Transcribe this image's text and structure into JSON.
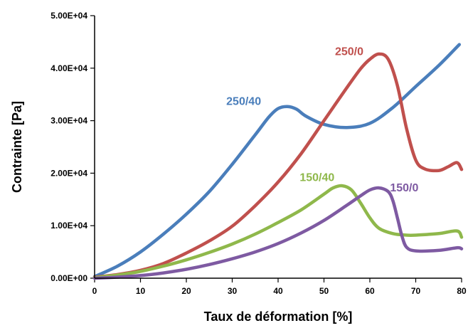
{
  "chart_data": {
    "type": "line",
    "title": "",
    "xlabel": "Taux de déformation [%]",
    "ylabel": "Contrainte [Pa]",
    "xlim": [
      0,
      80
    ],
    "ylim": [
      0,
      50000
    ],
    "x_ticks": [
      0,
      10,
      20,
      30,
      40,
      50,
      60,
      70,
      80
    ],
    "x_tick_labels": [
      "0",
      "10",
      "20",
      "30",
      "40",
      "50",
      "60",
      "70",
      "80"
    ],
    "y_ticks": [
      0,
      10000,
      20000,
      30000,
      40000,
      50000
    ],
    "y_tick_labels": [
      "0.00E+00",
      "1.00E+04",
      "2.00E+04",
      "3.00E+04",
      "4.00E+04",
      "5.00E+04"
    ],
    "grid": false,
    "legend": "inline labels",
    "series": [
      {
        "name": "250/40",
        "color": "#4a7ebb",
        "x": [
          0,
          5,
          10,
          15,
          20,
          25,
          30,
          35,
          38,
          40,
          42,
          44,
          46,
          50,
          55,
          60,
          65,
          70,
          75,
          79.5
        ],
        "y": [
          300,
          2300,
          5000,
          8400,
          12200,
          16500,
          21700,
          27300,
          30700,
          32300,
          32700,
          32200,
          30900,
          29300,
          28700,
          29500,
          32500,
          36500,
          40500,
          44500
        ]
      },
      {
        "name": "250/0",
        "color": "#c0504d",
        "x": [
          0,
          5,
          10,
          15,
          20,
          25,
          30,
          35,
          40,
          45,
          50,
          55,
          58,
          60,
          62,
          64,
          66,
          68,
          70,
          72,
          75,
          77,
          79,
          80
        ],
        "y": [
          200,
          700,
          1500,
          2800,
          4800,
          7100,
          9900,
          13800,
          18300,
          23700,
          30000,
          36300,
          39900,
          41700,
          42700,
          41700,
          36700,
          28500,
          22500,
          20800,
          20500,
          21200,
          22000,
          20700
        ]
      },
      {
        "name": "150/40",
        "color": "#8fb84b",
        "x": [
          0,
          5,
          10,
          15,
          20,
          25,
          30,
          35,
          40,
          45,
          50,
          52,
          54,
          56,
          58,
          60,
          62,
          65,
          68,
          70,
          75,
          79,
          80
        ],
        "y": [
          100,
          600,
          1300,
          2300,
          3500,
          4900,
          6500,
          8400,
          10600,
          13000,
          16000,
          17200,
          17600,
          16800,
          14300,
          11500,
          9500,
          8500,
          8200,
          8200,
          8500,
          9000,
          7800
        ]
      },
      {
        "name": "150/0",
        "color": "#7e5aa2",
        "x": [
          0,
          5,
          10,
          15,
          20,
          25,
          30,
          35,
          40,
          45,
          50,
          55,
          58,
          60,
          62,
          64,
          65,
          66,
          67,
          68,
          70,
          75,
          79,
          80
        ],
        "y": [
          0,
          200,
          500,
          1000,
          1700,
          2600,
          3700,
          5000,
          6600,
          8600,
          11000,
          13900,
          15700,
          16800,
          17200,
          16500,
          14800,
          11500,
          8000,
          5900,
          5200,
          5300,
          5800,
          5600
        ]
      }
    ],
    "annotations": [
      {
        "text": "250/40",
        "series": "250/40",
        "color": "#4a7ebb",
        "x": 32.5,
        "y": 33000
      },
      {
        "text": "250/0",
        "series": "250/0",
        "color": "#c0504d",
        "x": 55.5,
        "y": 42500
      },
      {
        "text": "150/40",
        "series": "150/40",
        "color": "#8fb84b",
        "x": 48.5,
        "y": 18500
      },
      {
        "text": "150/0",
        "series": "150/0",
        "color": "#7e5aa2",
        "x": 67.5,
        "y": 16500
      }
    ]
  }
}
